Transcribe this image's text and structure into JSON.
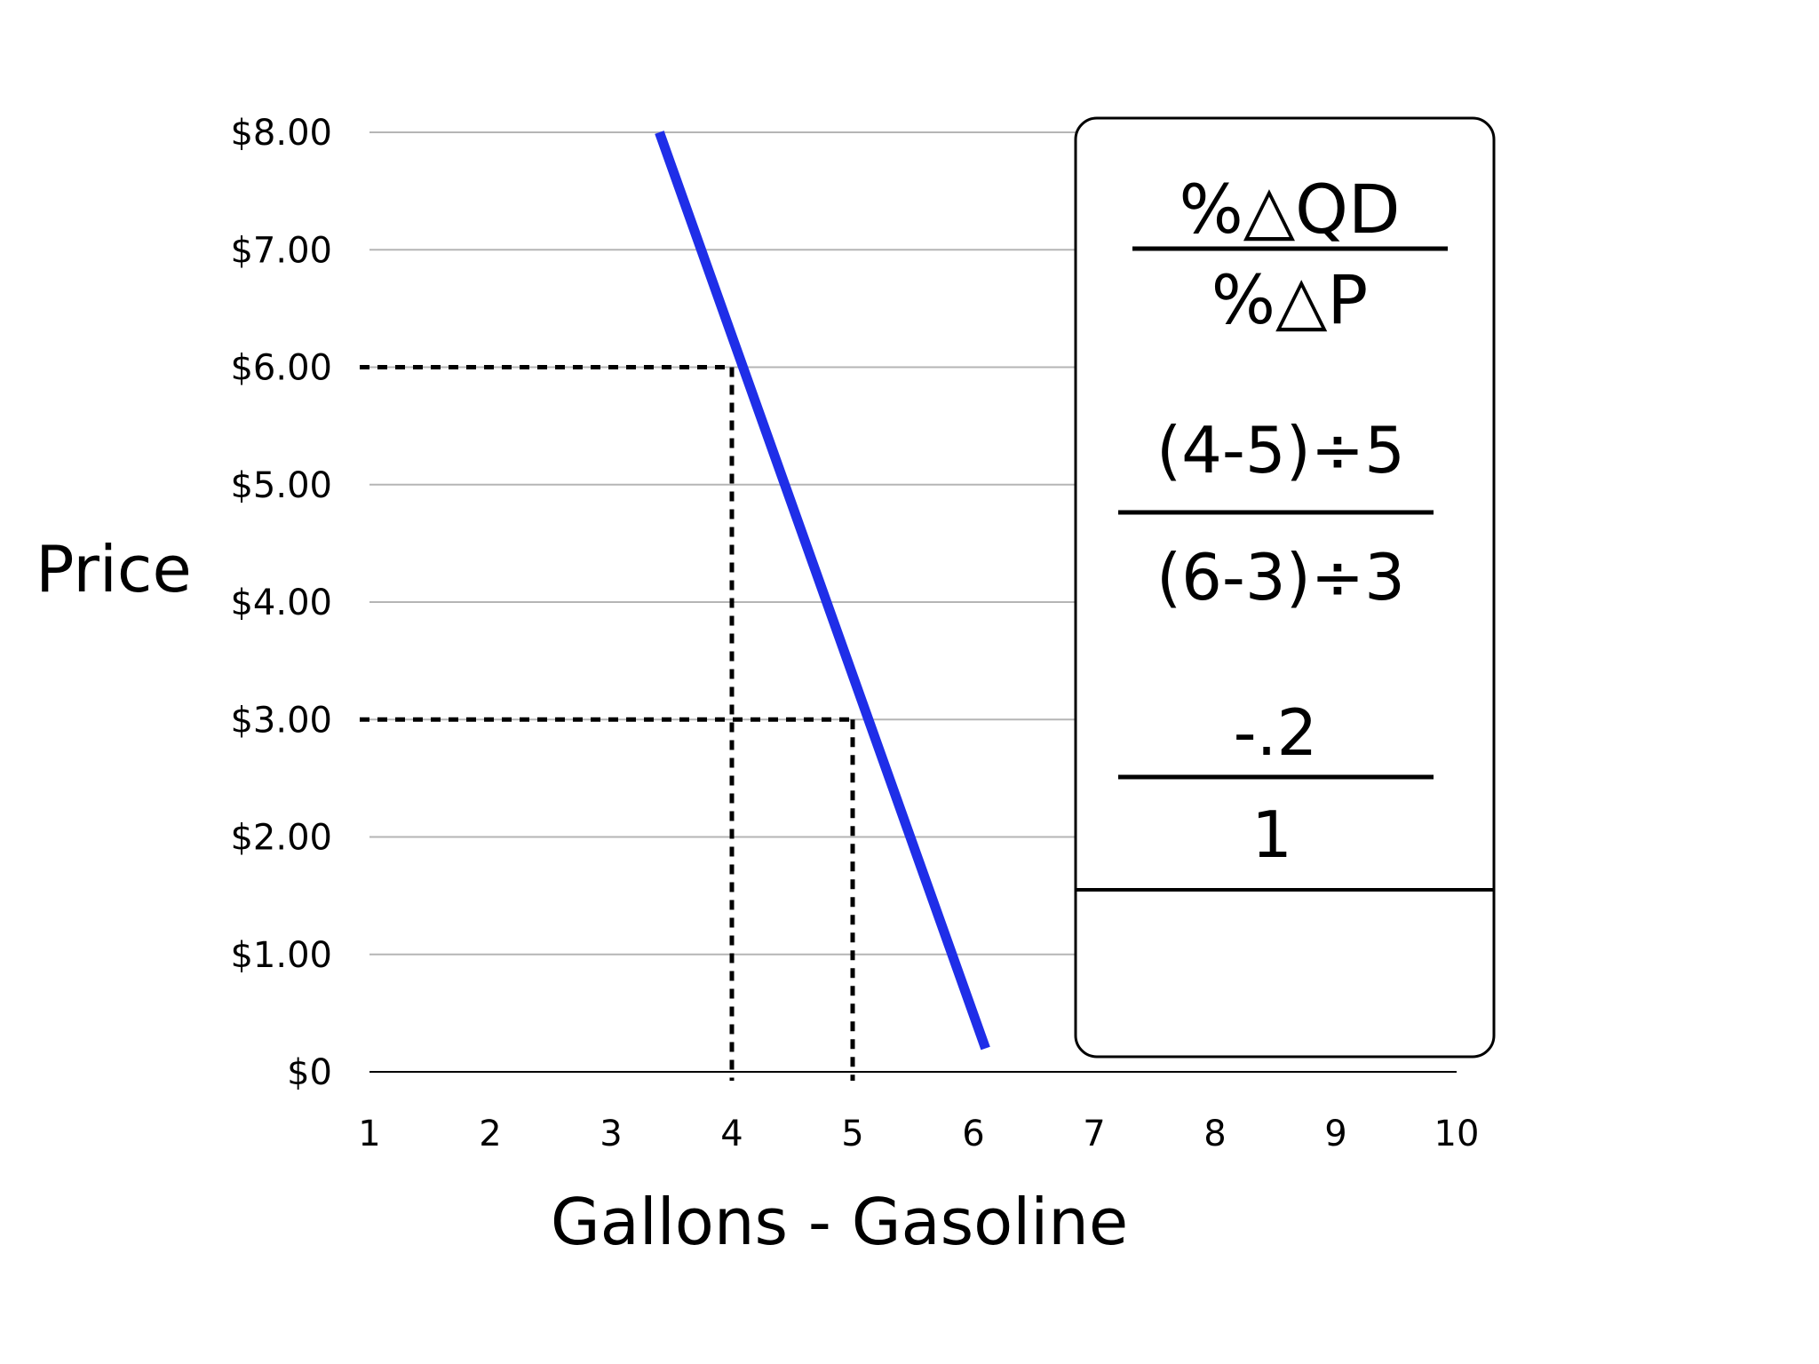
{
  "chart_data": {
    "type": "line",
    "xlabel": "Gallons - Gasoline",
    "ylabel": "Price",
    "xlim": [
      1,
      10
    ],
    "ylim": [
      0,
      8
    ],
    "x_ticks": [
      "1",
      "2",
      "3",
      "4",
      "5",
      "6",
      "7",
      "8",
      "9",
      "10"
    ],
    "y_ticks": [
      "$0",
      "$1.00",
      "$2.00",
      "$3.00",
      "$4.00",
      "$5.00",
      "$6.00",
      "$7.00",
      "$8.00"
    ],
    "grid": true,
    "series": [
      {
        "color": "#1f2ee8",
        "points": [
          {
            "x": 3.4,
            "y": 8
          },
          {
            "x": 6.1,
            "y": 0.2
          }
        ]
      }
    ],
    "reference_points": [
      {
        "x": 4,
        "y": 6
      },
      {
        "x": 5,
        "y": 3
      }
    ],
    "formula_box": {
      "numerator": "%△QD",
      "denominator": "%△P",
      "step_numerator": "(4-5)÷5",
      "step_denominator": "(6-3)÷3",
      "result_numerator": "-.2",
      "result_denominator": "1",
      "answer": ""
    }
  }
}
